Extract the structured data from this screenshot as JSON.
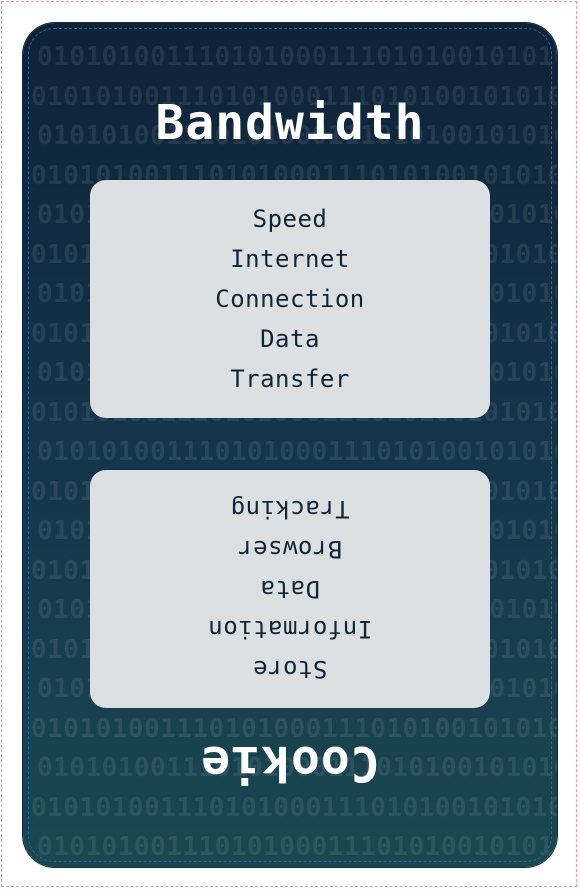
{
  "card": {
    "title_top": "Bandwidth",
    "words_top": [
      "Speed",
      "Internet",
      "Connection",
      "Data",
      "Transfer"
    ],
    "title_bottom": "Cookie",
    "words_bottom": [
      "Tracking",
      "Browser",
      "Data",
      "Information",
      "Store"
    ]
  },
  "background_pattern": "0101010011101010001110101001010100",
  "colors": {
    "card_top": "#0e2237",
    "card_bottom": "#1a4750",
    "panel": "#dce0e3",
    "text_dark": "#0f2636",
    "title": "#ffffff"
  }
}
